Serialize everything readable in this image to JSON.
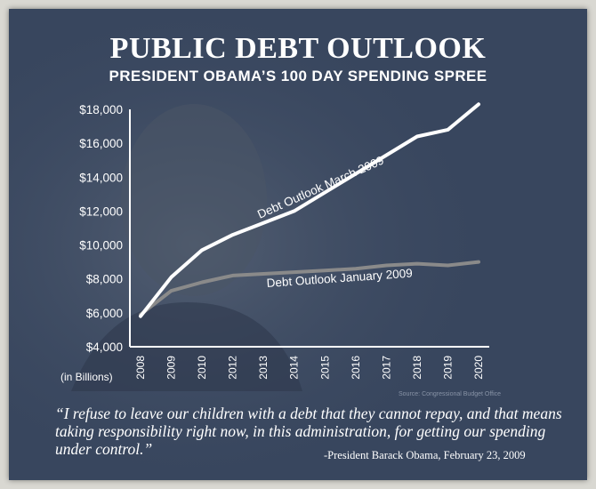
{
  "header": {
    "title": "PUBLIC DEBT OUTLOOK",
    "subtitle": "PRESIDENT OBAMA’S 100 DAY SPENDING SPREE"
  },
  "chart_data": {
    "type": "line",
    "title": "PUBLIC DEBT OUTLOOK",
    "subtitle": "PRESIDENT OBAMA’S 100 DAY SPENDING SPREE",
    "xlabel": "",
    "ylabel": "(in Billions)",
    "x_tick_labels": [
      "2008",
      "2009",
      "2010",
      "2012",
      "2013",
      "2014",
      "2015",
      "2016",
      "2017",
      "2018",
      "2019",
      "2020"
    ],
    "y_tick_labels": [
      "$18,000",
      "$16,000",
      "$14,000",
      "$12,000",
      "$10,000",
      "$8,000",
      "$6,000",
      "$4,000"
    ],
    "y_ticks": [
      18000,
      16000,
      14000,
      12000,
      10000,
      8000,
      6000,
      4000
    ],
    "ylim": [
      4000,
      18000
    ],
    "grid": false,
    "series": [
      {
        "name": "Debt Outlook March 2009",
        "color": "#ffffff",
        "values": [
          5800,
          8100,
          9700,
          10600,
          11300,
          12000,
          13100,
          14200,
          15300,
          16400,
          16800,
          18300
        ]
      },
      {
        "name": "Debt Outlook January 2009",
        "color": "#8a8a8a",
        "values": [
          5900,
          7300,
          7800,
          8200,
          8300,
          8400,
          8500,
          8600,
          8800,
          8900,
          8800,
          9000
        ]
      }
    ],
    "source": "Source: Congressional Budget Office"
  },
  "quote": {
    "text": "“I refuse to leave our children with a debt that they cannot repay, and that means taking responsibility right now, in this administration, for getting our spending under control.”",
    "attribution": "-President Barack Obama, February 23, 2009"
  }
}
